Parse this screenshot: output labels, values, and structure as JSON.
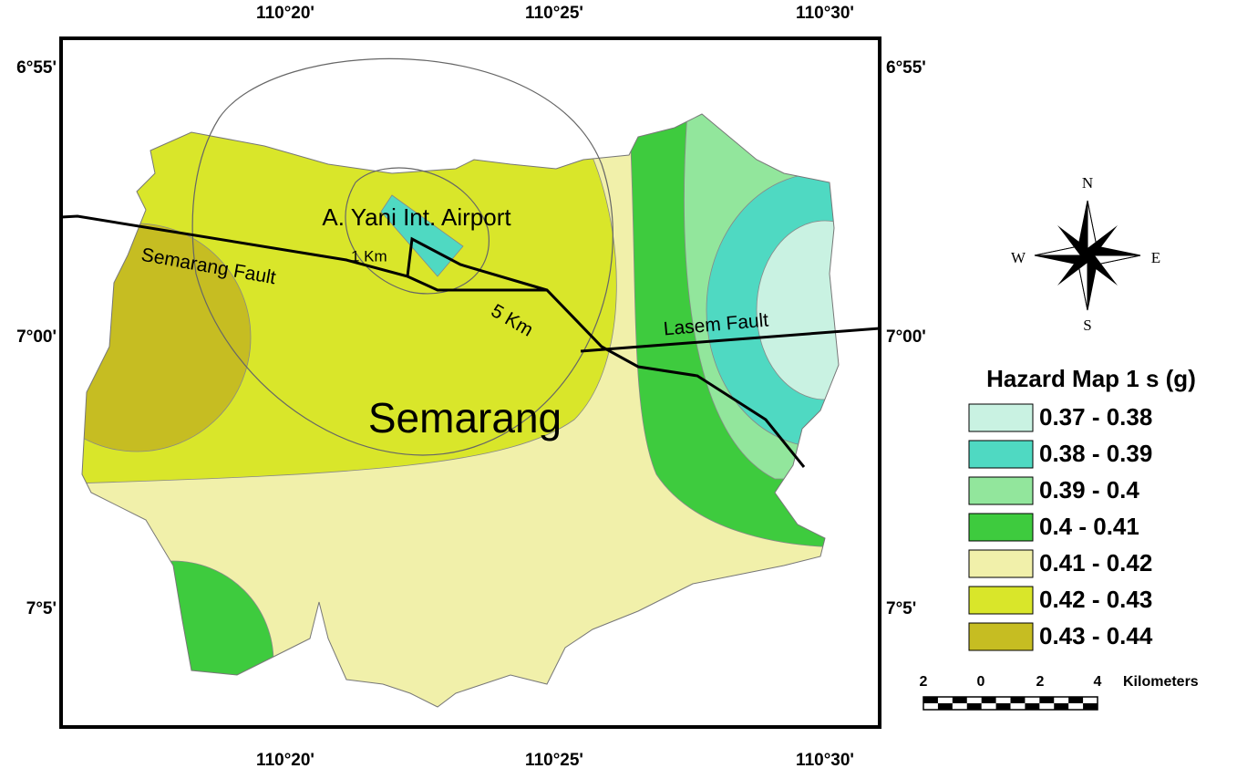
{
  "map": {
    "longitude_labels": [
      "110°20'",
      "110°25'",
      "110°30'"
    ],
    "latitude_labels": [
      "6°55'",
      "7°00'",
      "7°5'"
    ],
    "places": {
      "airport": "A. Yani Int. Airport",
      "semarang_fault": "Semarang Fault",
      "one_km": "1 Km",
      "five_km": "5 Km",
      "lasem_fault": "Lasem Fault",
      "city": "Semarang"
    }
  },
  "compass": {
    "north": "N",
    "south": "S",
    "east": "E",
    "west": "W"
  },
  "legend": {
    "title": "Hazard Map 1 s (g)",
    "items": [
      {
        "label": "0.37 - 0.38",
        "color": "#c9f2e2"
      },
      {
        "label": "0.38 - 0.39",
        "color": "#4fd9c2"
      },
      {
        "label": "0.39 - 0.4",
        "color": "#92e69c"
      },
      {
        "label": "0.4 - 0.41",
        "color": "#3ecb3e"
      },
      {
        "label": "0.41 - 0.42",
        "color": "#f1f0aa"
      },
      {
        "label": "0.42 - 0.43",
        "color": "#d9e62a"
      },
      {
        "label": "0.43 - 0.44",
        "color": "#c6bd22"
      }
    ]
  },
  "scale_bar": {
    "ticks": [
      "2",
      "0",
      "2",
      "4"
    ],
    "unit": "Kilometers"
  }
}
